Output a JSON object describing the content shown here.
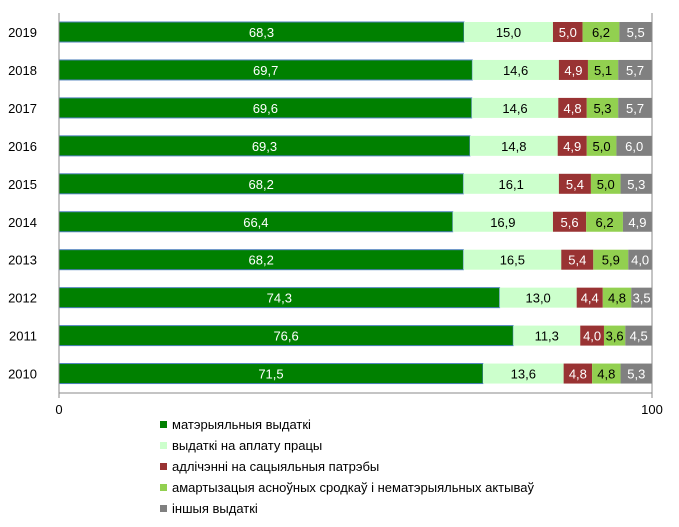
{
  "chart_data": {
    "type": "bar",
    "orientation": "horizontal",
    "stacked": true,
    "categories": [
      "2019",
      "2018",
      "2017",
      "2016",
      "2015",
      "2014",
      "2013",
      "2012",
      "2011",
      "2010"
    ],
    "series": [
      {
        "name": "матэрыяльныя выдаткі",
        "color": "#008000",
        "label_color": "#ffffff",
        "values": [
          "68,3",
          "69,7",
          "69,6",
          "69,3",
          "68,2",
          "66,4",
          "68,2",
          "74,3",
          "76,6",
          "71,5"
        ]
      },
      {
        "name": "выдаткі на аплату працы",
        "color": "#ccffcc",
        "label_color": "#000000",
        "values": [
          "15,0",
          "14,6",
          "14,6",
          "14,8",
          "16,1",
          "16,9",
          "16,5",
          "13,0",
          "11,3",
          "13,6"
        ]
      },
      {
        "name": "адлічэнні на сацыяльныя патрэбы",
        "color": "#993333",
        "label_color": "#ffffff",
        "values": [
          "5,0",
          "4,9",
          "4,8",
          "4,9",
          "5,4",
          "5,6",
          "5,4",
          "4,4",
          "4,0",
          "4,8"
        ]
      },
      {
        "name": "амартызацыя асноўных сродкаў і нематэрыяльных актываў",
        "color": "#92d050",
        "label_color": "#000000",
        "values": [
          "6,2",
          "5,1",
          "5,3",
          "5,0",
          "5,0",
          "6,2",
          "5,9",
          "4,8",
          "3,6",
          "4,8"
        ]
      },
      {
        "name": "іншыя выдаткі",
        "color": "#808080",
        "label_color": "#ffffff",
        "values": [
          "5,5",
          "5,7",
          "5,7",
          "6,0",
          "5,3",
          "4,9",
          "4,0",
          "3,5",
          "4,5",
          "5,3"
        ]
      }
    ],
    "xlim": [
      0,
      100
    ],
    "xticks": [
      "0",
      "100"
    ],
    "legend_position": "bottom",
    "grid": false
  }
}
